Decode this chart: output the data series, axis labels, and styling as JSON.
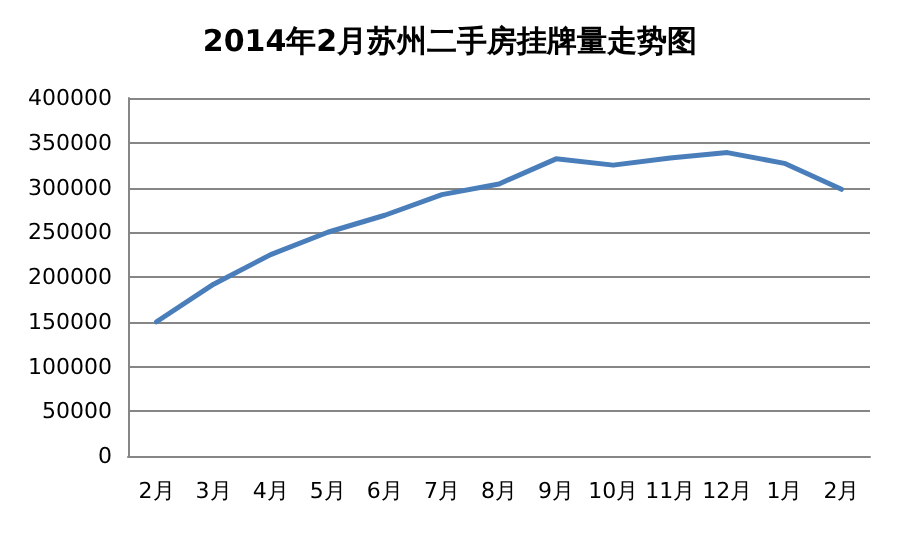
{
  "chart_data": {
    "type": "line",
    "title": "2014年2月苏州二手房挂牌量走势图",
    "categories": [
      "2月",
      "3月",
      "4月",
      "5月",
      "6月",
      "7月",
      "8月",
      "9月",
      "10月",
      "11月",
      "12月",
      "1月",
      "2月"
    ],
    "series": [
      {
        "color": "#4a7ebb",
        "values": [
          150000,
          192000,
          225000,
          250000,
          269000,
          292000,
          304000,
          332000,
          325000,
          333000,
          339000,
          327000,
          298000
        ]
      }
    ],
    "ylim": [
      0,
      400000
    ],
    "yticks": [
      0,
      50000,
      100000,
      150000,
      200000,
      250000,
      300000,
      350000,
      400000
    ],
    "grid": "y",
    "marker": "none",
    "line_style": "solid"
  }
}
